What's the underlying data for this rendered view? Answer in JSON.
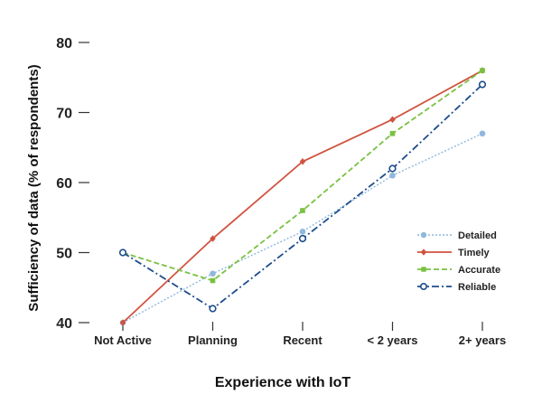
{
  "chart_data": {
    "type": "line",
    "title": "",
    "xlabel": "Experience with IoT",
    "ylabel": "Sufficiency of data (% of respondents)",
    "categories": [
      "Not Active",
      "Planning",
      "Recent",
      "< 2 years",
      "2+ years"
    ],
    "ylim": [
      40,
      80
    ],
    "yticks": [
      40,
      50,
      60,
      70,
      80
    ],
    "grid": false,
    "legend_position": "right",
    "series": [
      {
        "name": "Detailed",
        "values": [
          40,
          47,
          53,
          61,
          67
        ],
        "color": "#8fb8dc",
        "line": "dotted",
        "marker": "circle-filled"
      },
      {
        "name": "Timely",
        "values": [
          40,
          52,
          63,
          69,
          76
        ],
        "color": "#d0533f",
        "line": "solid",
        "marker": "diamond"
      },
      {
        "name": "Accurate",
        "values": [
          50,
          46,
          56,
          67,
          76
        ],
        "color": "#7ac142",
        "line": "dashed",
        "marker": "square"
      },
      {
        "name": "Reliable",
        "values": [
          50,
          42,
          52,
          62,
          74
        ],
        "color": "#1d4c8c",
        "line": "dashdot",
        "marker": "circle-open"
      }
    ]
  }
}
